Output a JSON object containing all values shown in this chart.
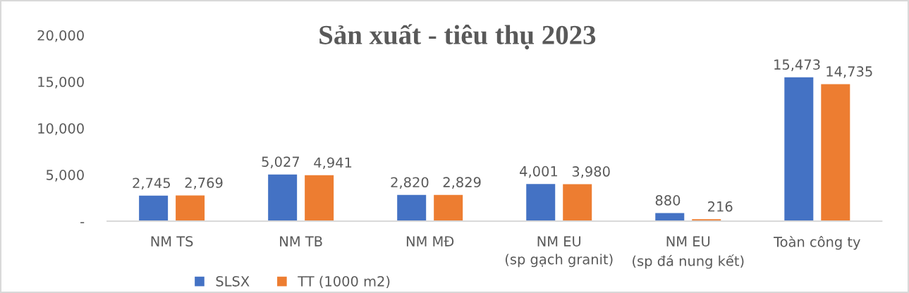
{
  "chart_data": {
    "type": "bar",
    "title": "Sản xuất - tiêu thụ 2023",
    "categories": [
      "NM TS",
      "NM TB",
      "NM MĐ",
      "NM EU\n(sp gạch granit)",
      "NM EU\n(sp đá nung kết)",
      "Toàn công ty"
    ],
    "series": [
      {
        "name": "SLSX",
        "color": "#4472c4",
        "values": [
          2745,
          5027,
          2820,
          4001,
          880,
          15473
        ],
        "value_labels": [
          "2,745",
          "5,027",
          "2,820",
          "4,001",
          "880",
          "15,473"
        ]
      },
      {
        "name": "TT (1000 m2)",
        "color": "#ed7d31",
        "values": [
          2769,
          4941,
          2829,
          3980,
          216,
          14735
        ],
        "value_labels": [
          "2,769",
          "4,941",
          "2,829",
          "3,980",
          "216",
          "14,735"
        ]
      }
    ],
    "ylim": [
      0,
      20000
    ],
    "yticks": [
      {
        "value": 0,
        "label": "-"
      },
      {
        "value": 5000,
        "label": "5,000"
      },
      {
        "value": 10000,
        "label": "10,000"
      },
      {
        "value": 15000,
        "label": "15,000"
      },
      {
        "value": 20000,
        "label": "20,000"
      }
    ],
    "grid": false,
    "legend": "bottom"
  }
}
